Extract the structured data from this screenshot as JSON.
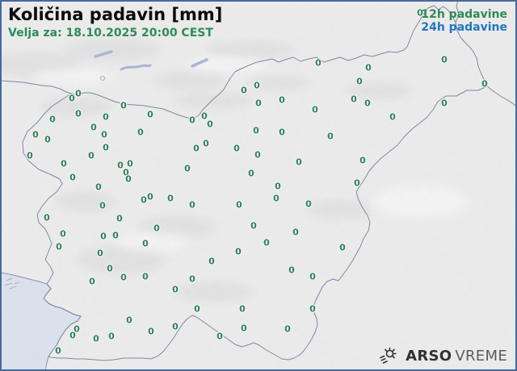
{
  "header": {
    "title": "Količina padavin [mm]",
    "valid_label": "Velja za: 18.10.2025 20:00 CEST"
  },
  "legend": {
    "items": [
      {
        "id": "12h",
        "label": "12h padavine",
        "color": "#2e8b57",
        "selected": true
      },
      {
        "id": "24h",
        "label": "24h padavine",
        "color": "#1f78c0",
        "selected": false
      }
    ]
  },
  "branding": {
    "agency": "ARSO",
    "product": "VREME",
    "icon": "sun-wind-icon"
  },
  "map": {
    "colors": {
      "land": "#ececec",
      "sea": "#dbe2ee",
      "border_line": "#7d88a6",
      "lake": "#a9b6d2",
      "frame": "#46689b"
    }
  },
  "stations": {
    "unit": "mm",
    "value_color": "#2f8160",
    "points": [
      [
        97,
        116,
        "0"
      ],
      [
        89,
        122,
        "0"
      ],
      [
        153,
        131,
        "0"
      ],
      [
        186,
        142,
        "0"
      ],
      [
        97,
        141,
        "0"
      ],
      [
        65,
        148,
        "0"
      ],
      [
        131,
        145,
        "0"
      ],
      [
        116,
        158,
        "0"
      ],
      [
        44,
        167,
        "0"
      ],
      [
        174,
        164,
        "0"
      ],
      [
        129,
        167,
        "0"
      ],
      [
        59,
        173,
        "0"
      ],
      [
        37,
        193,
        "0"
      ],
      [
        113,
        193,
        "0"
      ],
      [
        131,
        183,
        "0"
      ],
      [
        394,
        78,
        "0"
      ],
      [
        318,
        106,
        "0"
      ],
      [
        302,
        112,
        "0"
      ],
      [
        320,
        128,
        "0"
      ],
      [
        349,
        124,
        "0"
      ],
      [
        390,
        136,
        "0"
      ],
      [
        253,
        144,
        "0"
      ],
      [
        238,
        149,
        "0"
      ],
      [
        260,
        154,
        "0"
      ],
      [
        317,
        162,
        "0"
      ],
      [
        349,
        164,
        "0"
      ],
      [
        409,
        169,
        "0"
      ],
      [
        243,
        184,
        "0"
      ],
      [
        255,
        178,
        "0"
      ],
      [
        293,
        184,
        "0"
      ],
      [
        319,
        192,
        "0"
      ],
      [
        550,
        74,
        "0"
      ],
      [
        456,
        84,
        "0"
      ],
      [
        445,
        101,
        "0"
      ],
      [
        600,
        104,
        "0"
      ],
      [
        438,
        123,
        "0"
      ],
      [
        455,
        128,
        "0"
      ],
      [
        550,
        128,
        "0"
      ],
      [
        486,
        145,
        "0"
      ],
      [
        520,
        16,
        "0"
      ],
      [
        79,
        203,
        "0"
      ],
      [
        149,
        205,
        "0"
      ],
      [
        161,
        203,
        "0"
      ],
      [
        156,
        214,
        "0"
      ],
      [
        159,
        222,
        "0"
      ],
      [
        90,
        220,
        "0"
      ],
      [
        122,
        232,
        "0"
      ],
      [
        178,
        248,
        "0"
      ],
      [
        186,
        244,
        "0"
      ],
      [
        211,
        246,
        "0"
      ],
      [
        127,
        255,
        "0"
      ],
      [
        58,
        270,
        "0"
      ],
      [
        148,
        271,
        "0"
      ],
      [
        194,
        283,
        "0"
      ],
      [
        78,
        290,
        "0"
      ],
      [
        128,
        293,
        "0"
      ],
      [
        143,
        292,
        "0"
      ],
      [
        180,
        302,
        "0"
      ],
      [
        73,
        306,
        "0"
      ],
      [
        124,
        314,
        "0"
      ],
      [
        370,
        201,
        "0"
      ],
      [
        232,
        209,
        "0"
      ],
      [
        311,
        215,
        "0"
      ],
      [
        344,
        231,
        "0"
      ],
      [
        342,
        246,
        "0"
      ],
      [
        238,
        254,
        "0"
      ],
      [
        296,
        254,
        "0"
      ],
      [
        382,
        253,
        "0"
      ],
      [
        314,
        280,
        "0"
      ],
      [
        366,
        288,
        "0"
      ],
      [
        330,
        301,
        "0"
      ],
      [
        295,
        312,
        "0"
      ],
      [
        424,
        307,
        "0"
      ],
      [
        262,
        324,
        "0"
      ],
      [
        449,
        199,
        "0"
      ],
      [
        442,
        227,
        "0"
      ],
      [
        136,
        333,
        "0"
      ],
      [
        153,
        344,
        "0"
      ],
      [
        180,
        343,
        "0"
      ],
      [
        114,
        349,
        "0"
      ],
      [
        160,
        397,
        "0"
      ],
      [
        187,
        411,
        "0"
      ],
      [
        95,
        408,
        "0"
      ],
      [
        90,
        416,
        "0"
      ],
      [
        119,
        420,
        "0"
      ],
      [
        138,
        417,
        "0"
      ],
      [
        72,
        435,
        "0"
      ],
      [
        238,
        346,
        "0"
      ],
      [
        217,
        359,
        "0"
      ],
      [
        244,
        383,
        "0"
      ],
      [
        300,
        383,
        "0"
      ],
      [
        217,
        405,
        "0"
      ],
      [
        272,
        417,
        "0"
      ],
      [
        302,
        407,
        "0"
      ],
      [
        356,
        408,
        "0"
      ],
      [
        361,
        335,
        "0"
      ],
      [
        387,
        343,
        "0"
      ],
      [
        387,
        383,
        "0"
      ]
    ]
  }
}
